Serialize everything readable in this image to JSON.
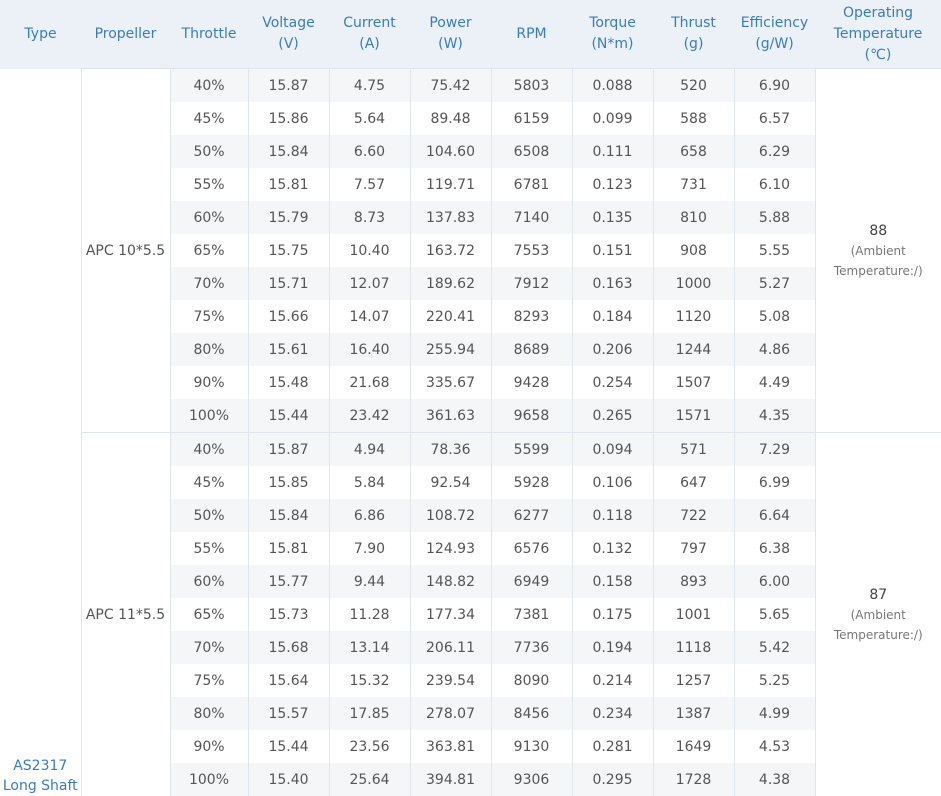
{
  "headers": [
    "Type",
    "Propeller",
    "Throttle",
    "Voltage\n(V)",
    "Current\n(A)",
    "Power\n(W)",
    "RPM",
    "Torque\n(N*m)",
    "Thrust\n(g)",
    "Efficiency\n(g/W)",
    "Operating\nTemperature\n(℃)"
  ],
  "type_label": "AS2317\nLong Shaft",
  "groups": [
    {
      "propeller": "APC 10*5.5",
      "temperature": "88",
      "temperature_note": "(Ambient\nTemperature:/)",
      "rows": [
        [
          "40%",
          "15.87",
          "4.75",
          "75.42",
          "5803",
          "0.088",
          "520",
          "6.90"
        ],
        [
          "45%",
          "15.86",
          "5.64",
          "89.48",
          "6159",
          "0.099",
          "588",
          "6.57"
        ],
        [
          "50%",
          "15.84",
          "6.60",
          "104.60",
          "6508",
          "0.111",
          "658",
          "6.29"
        ],
        [
          "55%",
          "15.81",
          "7.57",
          "119.71",
          "6781",
          "0.123",
          "731",
          "6.10"
        ],
        [
          "60%",
          "15.79",
          "8.73",
          "137.83",
          "7140",
          "0.135",
          "810",
          "5.88"
        ],
        [
          "65%",
          "15.75",
          "10.40",
          "163.72",
          "7553",
          "0.151",
          "908",
          "5.55"
        ],
        [
          "70%",
          "15.71",
          "12.07",
          "189.62",
          "7912",
          "0.163",
          "1000",
          "5.27"
        ],
        [
          "75%",
          "15.66",
          "14.07",
          "220.41",
          "8293",
          "0.184",
          "1120",
          "5.08"
        ],
        [
          "80%",
          "15.61",
          "16.40",
          "255.94",
          "8689",
          "0.206",
          "1244",
          "4.86"
        ],
        [
          "90%",
          "15.48",
          "21.68",
          "335.67",
          "9428",
          "0.254",
          "1507",
          "4.49"
        ],
        [
          "100%",
          "15.44",
          "23.42",
          "361.63",
          "9658",
          "0.265",
          "1571",
          "4.35"
        ]
      ]
    },
    {
      "propeller": "APC 11*5.5",
      "temperature": "87",
      "temperature_note": "(Ambient\nTemperature:/)",
      "rows": [
        [
          "40%",
          "15.87",
          "4.94",
          "78.36",
          "5599",
          "0.094",
          "571",
          "7.29"
        ],
        [
          "45%",
          "15.85",
          "5.84",
          "92.54",
          "5928",
          "0.106",
          "647",
          "6.99"
        ],
        [
          "50%",
          "15.84",
          "6.86",
          "108.72",
          "6277",
          "0.118",
          "722",
          "6.64"
        ],
        [
          "55%",
          "15.81",
          "7.90",
          "124.93",
          "6576",
          "0.132",
          "797",
          "6.38"
        ],
        [
          "60%",
          "15.77",
          "9.44",
          "148.82",
          "6949",
          "0.158",
          "893",
          "6.00"
        ],
        [
          "65%",
          "15.73",
          "11.28",
          "177.34",
          "7381",
          "0.175",
          "1001",
          "5.65"
        ],
        [
          "70%",
          "15.68",
          "13.14",
          "206.11",
          "7736",
          "0.194",
          "1118",
          "5.42"
        ],
        [
          "75%",
          "15.64",
          "15.32",
          "239.54",
          "8090",
          "0.214",
          "1257",
          "5.25"
        ],
        [
          "80%",
          "15.57",
          "17.85",
          "278.07",
          "8456",
          "0.234",
          "1387",
          "4.99"
        ],
        [
          "90%",
          "15.44",
          "23.56",
          "363.81",
          "9130",
          "0.281",
          "1649",
          "4.53"
        ],
        [
          "100%",
          "15.40",
          "25.64",
          "394.81",
          "9306",
          "0.295",
          "1728",
          "4.38"
        ]
      ]
    }
  ],
  "colors": {
    "header_bg": "#ebf1f6",
    "header_text": "#3a7cc0",
    "stripe": "#f4f6f8",
    "border": "#dfe5ec"
  }
}
